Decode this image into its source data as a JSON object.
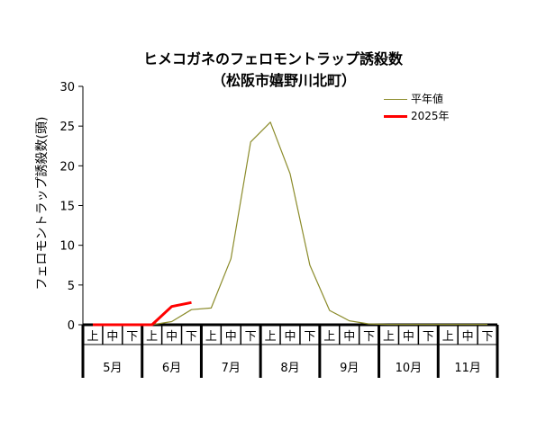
{
  "chart_data": {
    "type": "line",
    "title": "ヒメコガネのフェロモントラップ誘殺数",
    "subtitle": "（松阪市嬉野川北町）",
    "xlabel": "",
    "ylabel": "フェロモントラップ誘殺数(頭)",
    "ylim": [
      0,
      30
    ],
    "yticks": [
      "0",
      "5",
      "10",
      "15",
      "20",
      "25",
      "30"
    ],
    "x_sub": [
      "上",
      "中",
      "下",
      "上",
      "中",
      "下",
      "上",
      "中",
      "下",
      "上",
      "中",
      "下",
      "上",
      "中",
      "下",
      "上",
      "中",
      "下",
      "上",
      "中",
      "下"
    ],
    "x_months": [
      "5月",
      "6月",
      "7月",
      "8月",
      "9月",
      "10月",
      "11月"
    ],
    "legend_position": "top-right",
    "series": [
      {
        "name": "平年値",
        "color": "#8b8b2a",
        "values": [
          0,
          0,
          0,
          0,
          0.4,
          1.9,
          2.1,
          8.3,
          23.0,
          25.5,
          19.0,
          7.5,
          1.8,
          0.5,
          0.1,
          0.05,
          0.05,
          0.05,
          0.05,
          0.05,
          0.05
        ]
      },
      {
        "name": "2025年",
        "color": "#ff0000",
        "values": [
          0,
          0,
          0,
          0,
          2.3,
          2.8
        ]
      }
    ]
  }
}
